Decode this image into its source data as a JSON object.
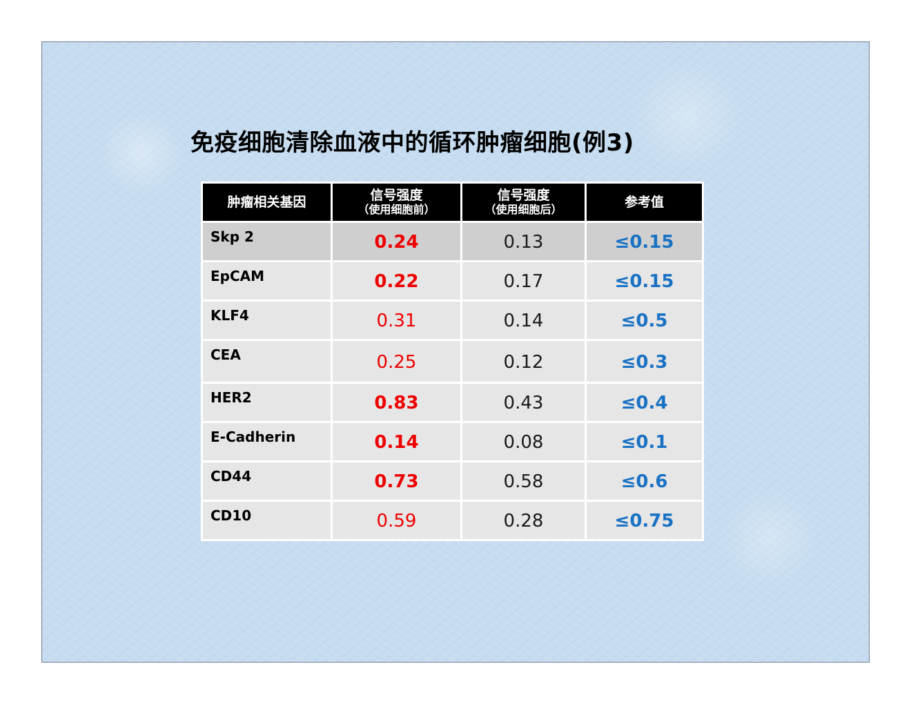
{
  "title": "免疫细胞清除血液中的循环肿瘤细胞(例3)",
  "colors": {
    "header_bg": "#000000",
    "header_text": "#ffffff",
    "before_value": "#ee0000",
    "after_value": "#1a1a1a",
    "reference_value": "#1a72c4"
  },
  "table": {
    "headers": {
      "gene": "肿瘤相关基因",
      "before_main": "信号强度",
      "before_sub": "（使用细胞前）",
      "after_main": "信号强度",
      "after_sub": "（使用细胞后）",
      "reference": "参考值"
    },
    "rows": [
      {
        "gene": "Skp 2",
        "before": "0.24",
        "before_bold": true,
        "after": "0.13",
        "reference": "≤0.15"
      },
      {
        "gene": "EpCAM",
        "before": "0.22",
        "before_bold": true,
        "after": "0.17",
        "reference": "≤0.15"
      },
      {
        "gene": "KLF4",
        "before": "0.31",
        "before_bold": false,
        "after": "0.14",
        "reference": "≤0.5"
      },
      {
        "gene": "CEA",
        "before": "0.25",
        "before_bold": false,
        "after": "0.12",
        "reference": "≤0.3"
      },
      {
        "gene": "HER2",
        "before": "0.83",
        "before_bold": true,
        "after": "0.43",
        "reference": "≤0.4"
      },
      {
        "gene": "E-Cadherin",
        "before": "0.14",
        "before_bold": true,
        "after": "0.08",
        "reference": "≤0.1"
      },
      {
        "gene": "CD44",
        "before": "0.73",
        "before_bold": true,
        "after": "0.58",
        "reference": "≤0.6"
      },
      {
        "gene": "CD10",
        "before": "0.59",
        "before_bold": false,
        "after": "0.28",
        "reference": "≤0.75"
      }
    ]
  }
}
